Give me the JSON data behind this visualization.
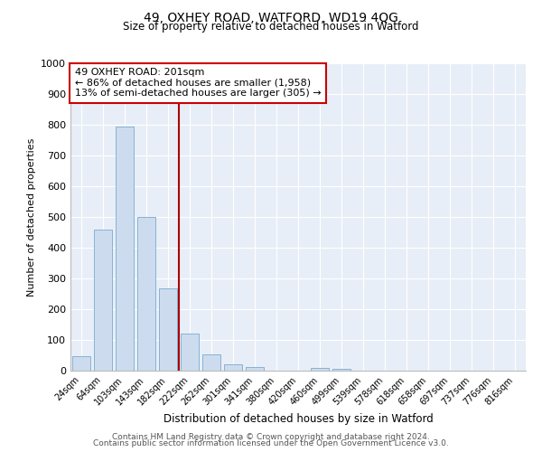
{
  "title": "49, OXHEY ROAD, WATFORD, WD19 4QG",
  "subtitle": "Size of property relative to detached houses in Watford",
  "xlabel": "Distribution of detached houses by size in Watford",
  "ylabel": "Number of detached properties",
  "bar_labels": [
    "24sqm",
    "64sqm",
    "103sqm",
    "143sqm",
    "182sqm",
    "222sqm",
    "262sqm",
    "301sqm",
    "341sqm",
    "380sqm",
    "420sqm",
    "460sqm",
    "499sqm",
    "539sqm",
    "578sqm",
    "618sqm",
    "658sqm",
    "697sqm",
    "737sqm",
    "776sqm",
    "816sqm"
  ],
  "bar_values": [
    48,
    460,
    793,
    500,
    268,
    120,
    53,
    20,
    12,
    0,
    0,
    8,
    5,
    0,
    0,
    0,
    0,
    0,
    0,
    0,
    0
  ],
  "bar_color": "#ccdcee",
  "bar_edgecolor": "#7aaacf",
  "vline_x": 4.5,
  "vline_color": "#aa0000",
  "annotation_title": "49 OXHEY ROAD: 201sqm",
  "annotation_line1": "← 86% of detached houses are smaller (1,958)",
  "annotation_line2": "13% of semi-detached houses are larger (305) →",
  "annotation_box_color": "#cc0000",
  "ylim": [
    0,
    1000
  ],
  "yticks": [
    0,
    100,
    200,
    300,
    400,
    500,
    600,
    700,
    800,
    900,
    1000
  ],
  "bg_color": "#e8eef7",
  "footer1": "Contains HM Land Registry data © Crown copyright and database right 2024.",
  "footer2": "Contains public sector information licensed under the Open Government Licence v3.0."
}
